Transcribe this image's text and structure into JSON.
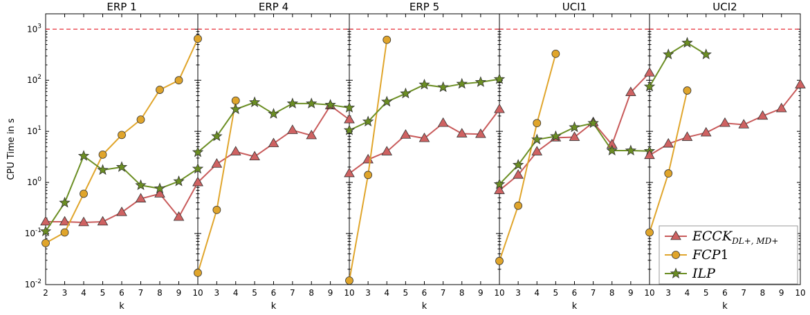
{
  "chart_data": {
    "type": "line",
    "ylabel": "CPU Time in s",
    "xlabel": "k",
    "yscale": "log",
    "ylim": [
      0.01,
      2000
    ],
    "yticks": [
      {
        "value": 0.01,
        "base": "10",
        "exp": "-2"
      },
      {
        "value": 0.1,
        "base": "10",
        "exp": "-1"
      },
      {
        "value": 1,
        "base": "10",
        "exp": "0"
      },
      {
        "value": 10,
        "base": "10",
        "exp": "1"
      },
      {
        "value": 100,
        "base": "10",
        "exp": "2"
      },
      {
        "value": 1000,
        "base": "10",
        "exp": "3"
      }
    ],
    "timeout": 1000,
    "timeout_color": "#e8323c",
    "grid": false,
    "legend_position": "bottom-right",
    "legend": {
      "entries": [
        {
          "series": "ECCK",
          "main": "ECCK",
          "sub": "DL+, MD+"
        },
        {
          "series": "FCP1",
          "main": "FCP",
          "sub": "",
          "tail": "1"
        },
        {
          "series": "ILP",
          "main": "ILP",
          "sub": ""
        }
      ]
    },
    "series_styles": [
      {
        "name": "ECCK",
        "color": "#c85a5a",
        "marker": "triangle",
        "marker_fill": "#cf6262"
      },
      {
        "name": "FCP1",
        "color": "#e0a52b",
        "marker": "circle",
        "marker_fill": "#e0a52b"
      },
      {
        "name": "ILP",
        "color": "#6b8e23",
        "marker": "star",
        "marker_fill": "#6b8e23"
      }
    ],
    "panels": [
      {
        "title": "ERP 1",
        "xticks": [
          "2",
          "3",
          "4",
          "5",
          "6",
          "7",
          "8",
          "9"
        ],
        "x_range": [
          2,
          10
        ],
        "series": [
          {
            "name": "ECCK",
            "x": [
              2,
              3,
              4,
              5,
              6,
              7,
              8,
              9,
              10
            ],
            "values": [
              0.17,
              0.17,
              0.165,
              0.17,
              0.26,
              0.48,
              0.6,
              0.21,
              1.0
            ]
          },
          {
            "name": "FCP1",
            "x": [
              2,
              3,
              4,
              5,
              6,
              7,
              8,
              9,
              10
            ],
            "values": [
              0.065,
              0.105,
              0.6,
              3.5,
              8.5,
              17,
              65,
              100,
              650
            ]
          },
          {
            "name": "ILP",
            "x": [
              2,
              3,
              4,
              5,
              6,
              7,
              8,
              9,
              10
            ],
            "values": [
              0.11,
              0.4,
              3.3,
              1.75,
              2.0,
              0.88,
              0.76,
              1.05,
              1.85
            ]
          }
        ]
      },
      {
        "title": "ERP 4",
        "xticks": [
          "10",
          "3",
          "4",
          "5",
          "6",
          "7",
          "8",
          "9"
        ],
        "x_range": [
          2,
          10
        ],
        "series": [
          {
            "name": "ECCK",
            "x": [
              2,
              3,
              4,
              5,
              6,
              7,
              8,
              9,
              10
            ],
            "values": [
              1.0,
              2.3,
              4.0,
              3.2,
              5.8,
              10.5,
              8.3,
              32,
              17
            ]
          },
          {
            "name": "FCP1",
            "x": [
              2,
              3,
              4
            ],
            "values": [
              0.017,
              0.29,
              40
            ]
          },
          {
            "name": "ILP",
            "x": [
              2,
              3,
              4,
              5,
              6,
              7,
              8,
              9,
              10
            ],
            "values": [
              3.9,
              8.0,
              27,
              37,
              22,
              35,
              35,
              33,
              29
            ]
          }
        ]
      },
      {
        "title": "ERP 5",
        "xticks": [
          "10",
          "3",
          "4",
          "5",
          "6",
          "7",
          "8",
          "9"
        ],
        "x_range": [
          2,
          10
        ],
        "series": [
          {
            "name": "ECCK",
            "x": [
              2,
              3,
              4,
              5,
              6,
              7,
              8,
              9,
              10
            ],
            "values": [
              1.5,
              2.8,
              4.0,
              8.5,
              7.3,
              14.5,
              9.0,
              8.8,
              27
            ]
          },
          {
            "name": "FCP1",
            "x": [
              2,
              3,
              4
            ],
            "values": [
              0.012,
              1.4,
              620
            ]
          },
          {
            "name": "ILP",
            "x": [
              2,
              3,
              4,
              5,
              6,
              7,
              8,
              9,
              10
            ],
            "values": [
              10.5,
              15.5,
              38,
              55,
              82,
              73,
              85,
              92,
              105
            ]
          }
        ]
      },
      {
        "title": "UCI1",
        "xticks": [
          "10",
          "3",
          "4",
          "5",
          "6",
          "7",
          "8",
          "9"
        ],
        "x_range": [
          2,
          10
        ],
        "series": [
          {
            "name": "ECCK",
            "x": [
              2,
              3,
              4,
              5,
              6,
              7,
              8,
              9,
              10
            ],
            "values": [
              0.7,
              1.4,
              4.0,
              7.5,
              7.7,
              15,
              5.5,
              58,
              140
            ]
          },
          {
            "name": "FCP1",
            "x": [
              2,
              3,
              4,
              5
            ],
            "values": [
              0.029,
              0.35,
              14.5,
              330
            ]
          },
          {
            "name": "ILP",
            "x": [
              2,
              3,
              4,
              5,
              6,
              7,
              8,
              9,
              10
            ],
            "values": [
              0.92,
              2.2,
              6.9,
              8.0,
              12.0,
              14.5,
              4.2,
              4.2,
              4.1
            ]
          }
        ]
      },
      {
        "title": "UCI2",
        "xticks": [
          "10",
          "3",
          "4",
          "5",
          "6",
          "7",
          "8",
          "9",
          "10"
        ],
        "x_range": [
          2,
          10
        ],
        "series": [
          {
            "name": "ECCK",
            "x": [
              2,
              3,
              4,
              5,
              6,
              7,
              8,
              9,
              10
            ],
            "values": [
              3.4,
              5.7,
              7.7,
              9.4,
              14.5,
              13.5,
              20,
              28,
              82
            ]
          },
          {
            "name": "FCP1",
            "x": [
              2,
              3,
              4
            ],
            "values": [
              0.105,
              1.5,
              63
            ]
          },
          {
            "name": "ILP",
            "x": [
              2,
              3,
              4,
              5
            ],
            "values": [
              75,
              320,
              540,
              320
            ]
          }
        ]
      }
    ]
  }
}
